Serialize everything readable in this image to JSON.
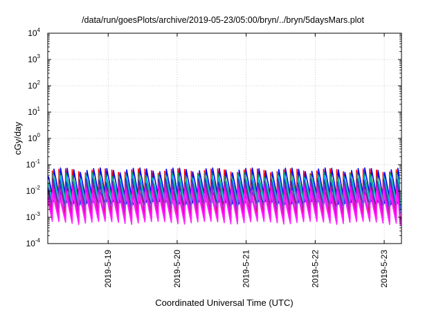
{
  "page": {
    "title": "/data/run/goesPlots/archive/2019-05-23/05:00/bryn/../bryn/5daysMars.plot"
  },
  "chart_data": {
    "type": "line",
    "title": "/data/run/goesPlots/archive/2019-05-23/05:00/bryn/../bryn/5daysMars.plot",
    "xlabel": "Coordinated Universal Time (UTC)",
    "ylabel": "cGy/day",
    "y_scale": "log",
    "ylim": [
      0.0001,
      10000
    ],
    "xlim": [
      "2019-05-18 03:00",
      "2019-05-23 06:00"
    ],
    "grid": true,
    "y_ticks": [
      {
        "base": "10",
        "exp": "-4",
        "value": 0.0001
      },
      {
        "base": "10",
        "exp": "-3",
        "value": 0.001
      },
      {
        "base": "10",
        "exp": "-2",
        "value": 0.01
      },
      {
        "base": "10",
        "exp": "-1",
        "value": 0.1
      },
      {
        "base": "10",
        "exp": "0",
        "value": 1
      },
      {
        "base": "10",
        "exp": "1",
        "value": 10
      },
      {
        "base": "10",
        "exp": "2",
        "value": 100
      },
      {
        "base": "10",
        "exp": "3",
        "value": 1000
      },
      {
        "base": "10",
        "exp": "4",
        "value": 10000
      }
    ],
    "x_ticks": [
      {
        "label": "2019-5-19",
        "value": "2019-05-19 00:00"
      },
      {
        "label": "2019-5-20",
        "value": "2019-05-20 00:00"
      },
      {
        "label": "2019-5-21",
        "value": "2019-05-21 00:00"
      },
      {
        "label": "2019-5-22",
        "value": "2019-05-22 00:00"
      },
      {
        "label": "2019-5-23",
        "value": "2019-05-23 00:00"
      }
    ],
    "cycle_hours": 2.3,
    "series": [
      {
        "color": "#ff0000",
        "peak": 0.07,
        "trough": 0.0012,
        "end_value": 0.0009
      },
      {
        "color": "#0000ff",
        "peak": 0.075,
        "trough": 0.004,
        "end_value": 0.0022
      },
      {
        "color": "#00aa55",
        "peak": 0.05,
        "trough": 0.005,
        "end_value": 0.003
      },
      {
        "color": "#00bcd4",
        "peak": 0.04,
        "trough": 0.0035,
        "end_value": 0.0019
      },
      {
        "color": "#1a3fbf",
        "peak": 0.03,
        "trough": 0.0025,
        "end_value": 0.0014
      },
      {
        "color": "#9c27b0",
        "peak": 0.022,
        "trough": 0.0018,
        "end_value": 0.0008
      },
      {
        "color": "#ff00ff",
        "peak": 0.015,
        "trough": 0.0009,
        "end_value": 0.0006
      },
      {
        "color": "#ff22ff",
        "peak": 0.01,
        "trough": 0.0007,
        "end_value": 0.0005
      }
    ]
  }
}
